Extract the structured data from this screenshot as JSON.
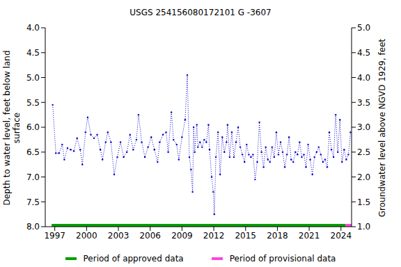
{
  "chart_data": {
    "type": "line",
    "title": "USGS 254156080172101 G  -3607",
    "y_label": "Depth to water level, feet below land surface",
    "y2_label": "Groundwater level above NGVD 1929, feet",
    "x": [
      1996.8,
      1997.1,
      1997.4,
      1997.7,
      1997.9,
      1998.2,
      1998.5,
      1998.8,
      1999.1,
      1999.4,
      1999.6,
      1999.9,
      2000.1,
      2000.4,
      2000.7,
      2001.0,
      2001.3,
      2001.5,
      2001.8,
      2002.0,
      2002.3,
      2002.6,
      2002.9,
      2003.2,
      2003.5,
      2003.8,
      2004.1,
      2004.4,
      2004.7,
      2004.9,
      2005.2,
      2005.5,
      2005.8,
      2006.1,
      2006.4,
      2006.7,
      2006.9,
      2007.2,
      2007.5,
      2007.7,
      2008.0,
      2008.2,
      2008.5,
      2008.7,
      2009.0,
      2009.3,
      2009.5,
      2009.7,
      2009.85,
      2010.0,
      2010.1,
      2010.2,
      2010.4,
      2010.5,
      2010.7,
      2010.9,
      2011.1,
      2011.3,
      2011.5,
      2011.6,
      2011.8,
      2011.95,
      2012.05,
      2012.2,
      2012.4,
      2012.6,
      2012.8,
      2013.0,
      2013.2,
      2013.3,
      2013.5,
      2013.7,
      2013.9,
      2014.1,
      2014.3,
      2014.5,
      2014.7,
      2014.9,
      2015.1,
      2015.3,
      2015.5,
      2015.7,
      2015.9,
      2016.1,
      2016.3,
      2016.5,
      2016.7,
      2016.9,
      2017.1,
      2017.3,
      2017.5,
      2017.7,
      2017.9,
      2018.1,
      2018.3,
      2018.5,
      2018.7,
      2018.9,
      2019.1,
      2019.3,
      2019.5,
      2019.7,
      2019.9,
      2020.1,
      2020.3,
      2020.5,
      2020.7,
      2020.9,
      2021.1,
      2021.3,
      2021.5,
      2021.7,
      2021.9,
      2022.1,
      2022.3,
      2022.5,
      2022.7,
      2022.9,
      2023.1,
      2023.3,
      2023.5,
      2023.7,
      2023.9,
      2024.1,
      2024.3,
      2024.5,
      2024.7,
      2024.9
    ],
    "series": [
      {
        "name": "Depth to water level",
        "color": "#0000cc",
        "marker": "circle",
        "line_style": "dotted",
        "values": [
          5.55,
          6.52,
          6.52,
          6.35,
          6.65,
          6.42,
          6.45,
          6.48,
          6.22,
          6.45,
          6.75,
          6.1,
          5.8,
          6.15,
          6.22,
          6.15,
          6.45,
          6.65,
          6.3,
          6.1,
          6.3,
          6.95,
          6.6,
          6.3,
          6.6,
          6.5,
          6.15,
          6.45,
          6.25,
          5.75,
          6.3,
          6.6,
          6.4,
          6.2,
          6.45,
          6.7,
          6.3,
          6.15,
          6.1,
          6.5,
          5.7,
          6.25,
          6.35,
          6.65,
          6.2,
          5.85,
          4.95,
          6.6,
          6.85,
          7.3,
          6.0,
          6.5,
          5.95,
          6.4,
          6.3,
          6.4,
          6.25,
          6.3,
          5.95,
          6.45,
          7.0,
          7.3,
          7.75,
          6.6,
          6.1,
          6.95,
          6.2,
          6.5,
          6.3,
          5.95,
          6.6,
          6.1,
          6.6,
          6.3,
          6.0,
          6.4,
          6.55,
          6.7,
          6.35,
          6.55,
          6.6,
          6.55,
          7.05,
          6.7,
          5.9,
          6.5,
          6.8,
          6.4,
          6.65,
          6.7,
          6.4,
          6.6,
          6.1,
          6.55,
          6.3,
          6.5,
          6.8,
          6.55,
          6.2,
          6.65,
          6.7,
          6.5,
          6.55,
          6.3,
          6.6,
          6.55,
          6.8,
          6.35,
          6.65,
          6.95,
          6.6,
          6.5,
          6.4,
          6.55,
          6.7,
          6.65,
          6.8,
          6.1,
          6.45,
          6.6,
          5.75,
          6.5,
          5.85,
          6.7,
          6.45,
          6.65,
          6.55,
          6.1
        ]
      }
    ],
    "periods": [
      {
        "name": "Period of approved data",
        "color": "#00a000",
        "start": 1996.7,
        "end": 2024.45
      },
      {
        "name": "Period of provisional data",
        "color": "#ff44dd",
        "start": 2024.45,
        "end": 2025.0
      }
    ],
    "xlim": [
      1996.1,
      2025.0
    ],
    "xticks": [
      1997,
      2000,
      2003,
      2006,
      2009,
      2012,
      2015,
      2018,
      2021,
      2024
    ],
    "ylim": [
      4,
      8
    ],
    "yticks": [
      {
        "value": 4,
        "label": "4.0"
      },
      4.5,
      {
        "value": 5,
        "label": "5.0"
      },
      5.5,
      {
        "value": 6,
        "label": "6.0"
      },
      6.5,
      {
        "value": 7,
        "label": "7.0"
      },
      7.5,
      {
        "value": 8,
        "label": "8.0"
      }
    ],
    "y2lim": [
      1,
      5
    ],
    "y2ticks": [
      {
        "value": 1,
        "label": "1.0"
      },
      1.5,
      {
        "value": 2,
        "label": "2.0"
      },
      2.5,
      {
        "value": 3,
        "label": "3.0"
      },
      3.5,
      {
        "value": 4,
        "label": "4.0"
      },
      4.5,
      {
        "value": 5,
        "label": "5.0"
      }
    ],
    "legend": "bottom",
    "grid": false
  }
}
